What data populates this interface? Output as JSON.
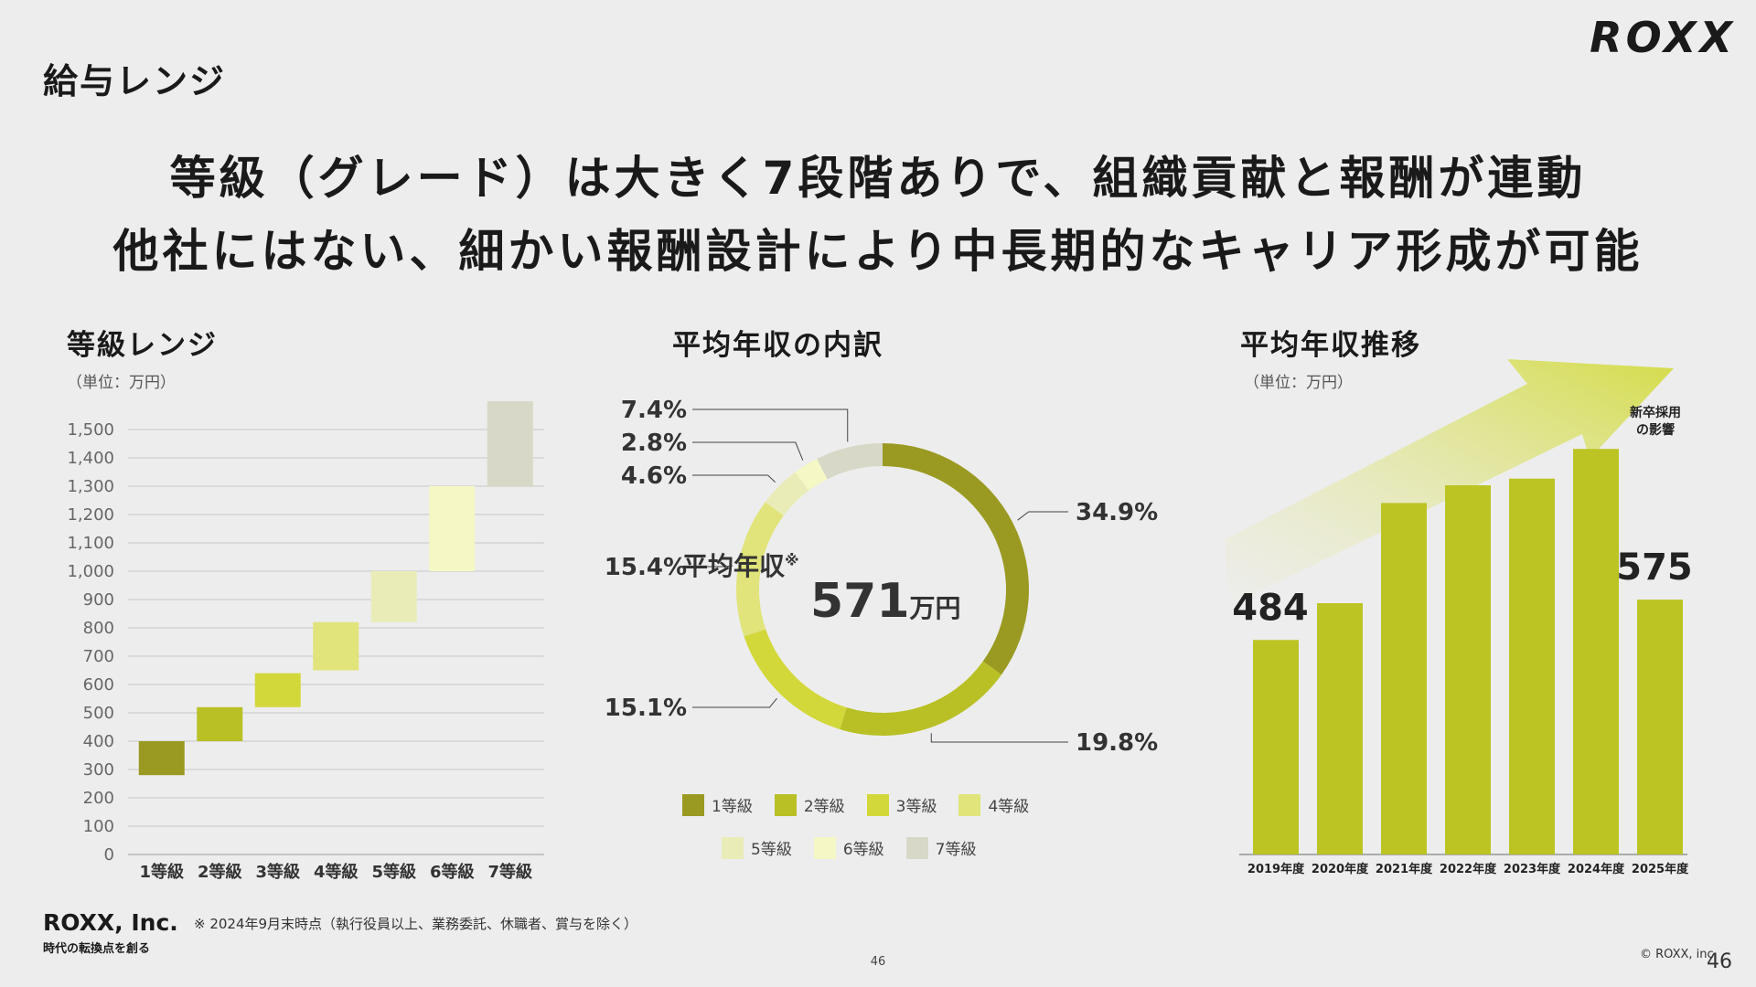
{
  "header": {
    "section_title": "給与レンジ",
    "logo": "ROXX"
  },
  "headline": {
    "line1": "等級（グレード）は大きく7段階ありで、組織貢献と報酬が連動",
    "line2": "他社にはない、細かい報酬設計により中長期的なキャリア形成が可能"
  },
  "colors": {
    "grade1": "#9a9a23",
    "grade2": "#b8c025",
    "grade3": "#d2d83a",
    "grade4": "#e0e47a",
    "grade5": "#eaecb7",
    "grade6": "#f5f7c4",
    "grade7": "#d8d8c8",
    "bar": "#bcc424"
  },
  "chart_data": [
    {
      "type": "bar",
      "subtype": "floating-range",
      "title": "等級レンジ",
      "unit": "（単位：万円）",
      "categories": [
        "1等級",
        "2等級",
        "3等級",
        "4等級",
        "5等級",
        "6等級",
        "7等級"
      ],
      "ranges": [
        [
          280,
          400
        ],
        [
          400,
          520
        ],
        [
          520,
          640
        ],
        [
          650,
          820
        ],
        [
          820,
          1000
        ],
        [
          1000,
          1300
        ],
        [
          1300,
          1600
        ]
      ],
      "yticks": [
        0,
        100,
        200,
        300,
        400,
        500,
        600,
        700,
        800,
        900,
        1000,
        1100,
        1200,
        1300,
        1400,
        1500
      ],
      "ytick_labels": [
        "0",
        "100",
        "200",
        "300",
        "400",
        "500",
        "600",
        "700",
        "800",
        "900",
        "1,000",
        "1,100",
        "1,200",
        "1,300",
        "1,400",
        "1,500"
      ],
      "ylim": [
        0,
        1600
      ]
    },
    {
      "type": "pie",
      "subtype": "donut",
      "title": "平均年収の内訳",
      "center_label": "平均年収",
      "center_mark": "※",
      "center_value": "571",
      "center_unit": "万円",
      "labels": [
        "1等級",
        "2等級",
        "3等級",
        "4等級",
        "5等級",
        "6等級",
        "7等級"
      ],
      "values": [
        34.9,
        19.8,
        15.1,
        15.4,
        4.6,
        2.8,
        7.4
      ],
      "value_labels": [
        "34.9%",
        "19.8%",
        "15.1%",
        "15.4%",
        "4.6%",
        "2.8%",
        "7.4%"
      ],
      "legend_row1": [
        "1等級",
        "2等級",
        "3等級",
        "4等級"
      ],
      "legend_row2": [
        "5等級",
        "6等級",
        "7等級"
      ]
    },
    {
      "type": "bar",
      "title": "平均年収推移",
      "unit": "（単位：万円）",
      "categories": [
        "2019年度",
        "2020年度",
        "2021年度",
        "2022年度",
        "2023年度",
        "2024年度",
        "2025年度"
      ],
      "values": [
        484,
        567,
        793,
        833,
        848,
        915,
        575
      ],
      "value_labels": [
        "484",
        "",
        "",
        "",
        "",
        "",
        "575"
      ],
      "annotation": "新卒採用\nの影響",
      "ylim": [
        0,
        1000
      ]
    }
  ],
  "footer": {
    "company": "ROXX, Inc.",
    "tagline": "時代の転換点を創る",
    "note": "※ 2024年9月末時点（執行役員以上、業務委託、休職者、賞与を除く）",
    "page_center": "46",
    "copyright": "© ROXX, inc.",
    "page_number": "46"
  }
}
